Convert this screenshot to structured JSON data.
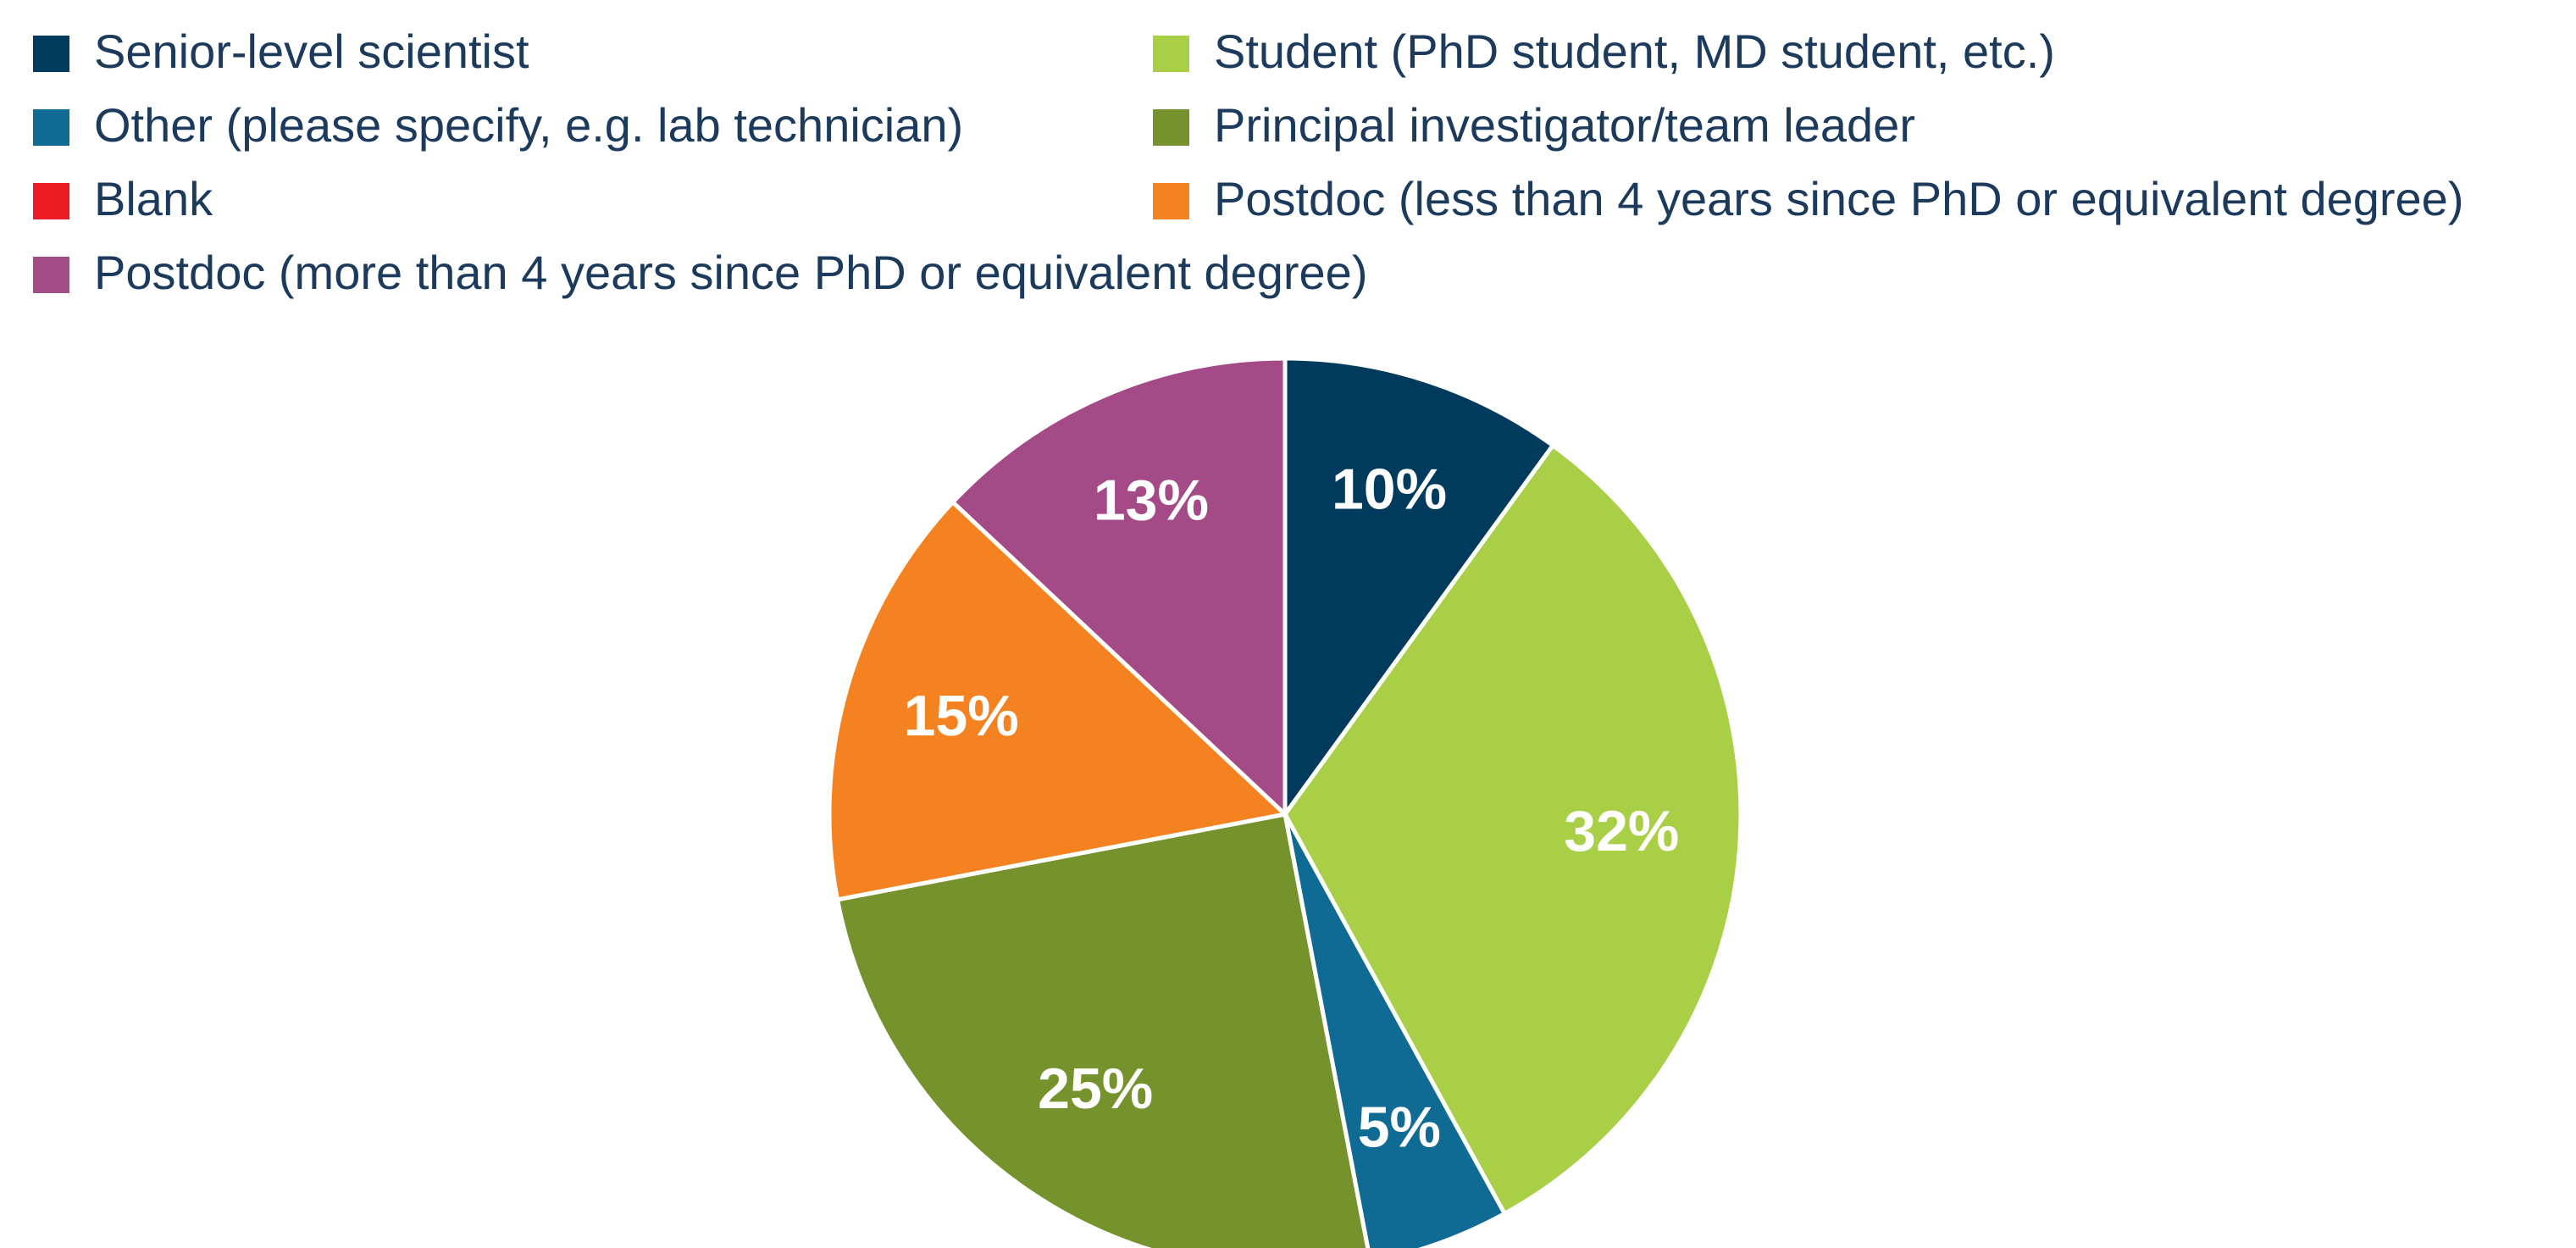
{
  "chart_data": {
    "type": "pie",
    "categories": [
      "Senior-level scientist",
      "Student (PhD student, MD student, etc.)",
      "Other (please specify, e.g. lab technician)",
      "Principal investigator/team leader",
      "Blank",
      "Postdoc (less than 4 years since PhD or equivalent degree)",
      "Postdoc (more than 4 years since PhD or equivalent degree)"
    ],
    "values": [
      10,
      32,
      5,
      25,
      0,
      15,
      13
    ],
    "value_labels": [
      "10%",
      "32%",
      "5%",
      "25%",
      null,
      "15%",
      "13%"
    ],
    "colors": [
      "#003a5d",
      "#a8cf45",
      "#0f6a94",
      "#76922c",
      "#ed1c24",
      "#f58220",
      "#a34a87"
    ]
  }
}
